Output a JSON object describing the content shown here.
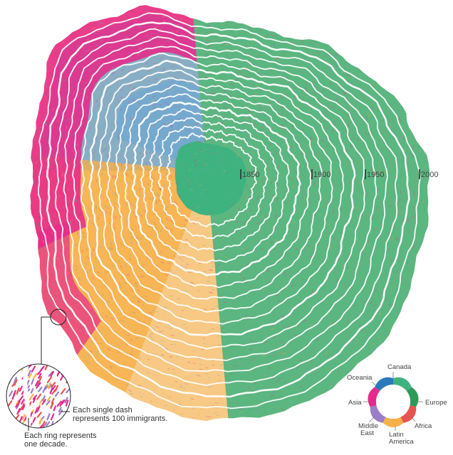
{
  "colors": {
    "north_america": "#3fb37f",
    "europe": "#74a9cf",
    "latin_america": "#f6b04a",
    "asia": "#e7298a",
    "africa": "#e8534f",
    "middle_east": "#9b7fc6",
    "oceania": "#2b79b8",
    "ring_line": "#ffffff"
  },
  "timeline": {
    "labels": [
      "1850",
      "1900",
      "1950",
      "2000"
    ]
  },
  "annotations": {
    "dash_note_line1": "Each single dash",
    "dash_note_line2": "represents 100 immigrants.",
    "ring_note_line1": "Each ring represents",
    "ring_note_line2": "one decade."
  },
  "legend": {
    "regions": [
      {
        "id": "canada",
        "label": "Canada",
        "color": "#3fb37f"
      },
      {
        "id": "europe",
        "label": "Europe",
        "color": "#2e9a5a"
      },
      {
        "id": "africa",
        "label": "Africa",
        "color": "#e8534f"
      },
      {
        "id": "latin-america",
        "label": "Latin\nAmerica",
        "color": "#f6b04a"
      },
      {
        "id": "middle-east",
        "label": "Middle\nEast",
        "color": "#9b7fc6"
      },
      {
        "id": "asia",
        "label": "Asia",
        "color": "#e7298a"
      },
      {
        "id": "oceania",
        "label": "Oceania",
        "color": "#2b79b8"
      }
    ]
  }
}
